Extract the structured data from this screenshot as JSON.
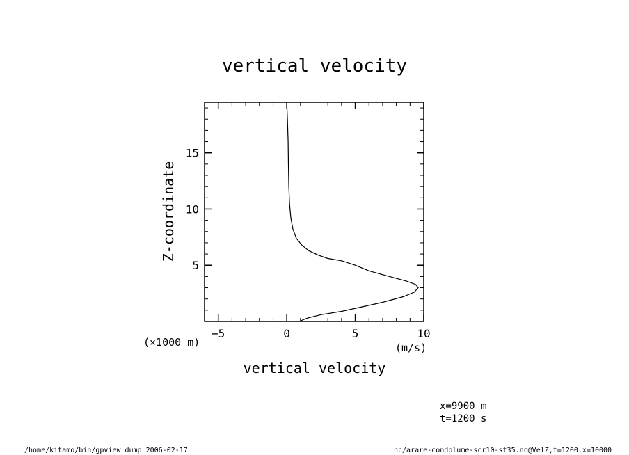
{
  "chart_data": {
    "type": "line",
    "title": "vertical velocity",
    "xlabel": "vertical velocity",
    "ylabel": "Z-coordinate",
    "x_units": "(m/s)",
    "y_units": "(×1000 m)",
    "xlim": [
      -6,
      10
    ],
    "ylim": [
      0,
      19.5
    ],
    "x_ticks": [
      -5,
      0,
      5,
      10
    ],
    "x_tick_labels": [
      "−5",
      "0",
      "5",
      "10"
    ],
    "y_ticks": [
      5,
      10,
      15
    ],
    "y_tick_labels": [
      "5",
      "10",
      "15"
    ],
    "x_minor_step": 1,
    "y_minor_step": 1,
    "grid": false,
    "series": [
      {
        "x": [
          0.9,
          1.5,
          2.5,
          4.0,
          5.5,
          7.0,
          8.5,
          9.3,
          9.6,
          9.4,
          8.7,
          7.5,
          6.0,
          5.0,
          4.0,
          3.0,
          2.3,
          1.6,
          1.1,
          0.7,
          0.45,
          0.3,
          0.2,
          0.15,
          0.12,
          0.1,
          0.05,
          0.0
        ],
        "y": [
          0.0,
          0.3,
          0.6,
          0.9,
          1.3,
          1.7,
          2.2,
          2.6,
          3.0,
          3.3,
          3.6,
          4.0,
          4.5,
          5.0,
          5.4,
          5.6,
          5.9,
          6.3,
          6.8,
          7.4,
          8.2,
          9.2,
          10.5,
          12.0,
          14.0,
          16.0,
          18.0,
          19.5
        ]
      }
    ]
  },
  "annotations": {
    "position_x": "x=9900  m",
    "time": "t=1200  s"
  },
  "footer": {
    "left": "/home/kitamo/bin/gpview_dump   2006-02-17",
    "right": "nc/arare-condplume-scr10-st35.nc@VelZ,t=1200,x=10000"
  }
}
